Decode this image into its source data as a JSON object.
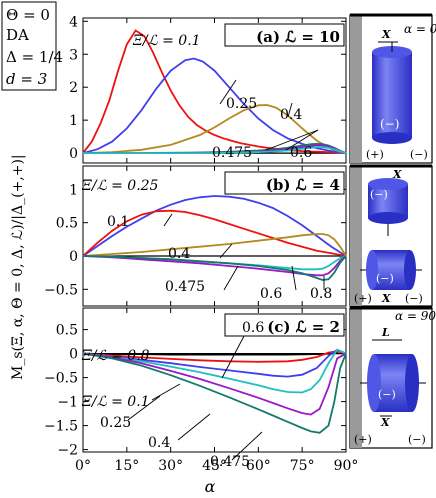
{
  "legend_box": {
    "lines": [
      "Θ = 0",
      "DA",
      "Δ = 1/4",
      "d = 3"
    ]
  },
  "y_axis_label": "M_s(Ξ, α, Θ = 0, Δ, ℒ)/|Δ_(+,+)|",
  "x_axis_label": "α",
  "colors": {
    "red": "#ee1111",
    "blue": "#3f3fee",
    "gold": "#b58a1c",
    "cyan": "#1fbfbf",
    "purple": "#9a18c8",
    "teal": "#137a6a",
    "black": "#000000",
    "gray": "#9a9a9a",
    "cyl_light": "#6f78f0",
    "cyl_dark": "#2a2fc4"
  },
  "chart_data": [
    {
      "type": "line",
      "panel_label": "(a) ℒ = 10",
      "x_ticks": [
        "0°",
        "15°",
        "30°",
        "45°",
        "60°",
        "75°",
        "90°"
      ],
      "xlim": [
        0,
        90
      ],
      "ylim": [
        -0.3,
        4.1
      ],
      "y_ticks": [
        0,
        1,
        2,
        3,
        4
      ],
      "series": [
        {
          "name": "0.1",
          "color": "red",
          "x": [
            0,
            3,
            6,
            9,
            12,
            15,
            18,
            21,
            24,
            27,
            30,
            33,
            36,
            39,
            42,
            45,
            48,
            51,
            54,
            57,
            60,
            63,
            66,
            69,
            72,
            75,
            78,
            81,
            84,
            87,
            90
          ],
          "y": [
            0,
            0.35,
            0.9,
            1.6,
            2.5,
            3.3,
            3.72,
            3.55,
            3.05,
            2.45,
            1.9,
            1.45,
            1.1,
            0.85,
            0.68,
            0.55,
            0.45,
            0.37,
            0.3,
            0.25,
            0.2,
            0.16,
            0.13,
            0.1,
            0.08,
            0.06,
            0.05,
            0.04,
            0.03,
            0.02,
            0
          ]
        },
        {
          "name": "0.25",
          "color": "blue",
          "x": [
            0,
            5,
            10,
            15,
            20,
            25,
            30,
            35,
            38,
            41,
            45,
            50,
            55,
            60,
            65,
            70,
            75,
            80,
            85,
            90
          ],
          "y": [
            0,
            0.12,
            0.35,
            0.75,
            1.3,
            1.95,
            2.5,
            2.82,
            2.87,
            2.78,
            2.5,
            2.0,
            1.5,
            1.05,
            0.7,
            0.45,
            0.28,
            0.15,
            0.06,
            0
          ]
        },
        {
          "name": "0.4",
          "color": "gold",
          "x": [
            0,
            10,
            20,
            30,
            40,
            45,
            50,
            55,
            60,
            63,
            66,
            70,
            75,
            80,
            85,
            90
          ],
          "y": [
            0,
            0.03,
            0.1,
            0.25,
            0.55,
            0.78,
            1.05,
            1.3,
            1.45,
            1.46,
            1.38,
            1.15,
            0.75,
            0.38,
            0.12,
            0
          ]
        },
        {
          "name": "0.475",
          "color": "teal",
          "x": [
            0,
            10,
            20,
            30,
            40,
            50,
            60,
            65,
            70,
            75,
            78,
            80,
            82,
            84,
            86,
            88,
            90
          ],
          "y": [
            0,
            0,
            0,
            0.01,
            0.02,
            0.04,
            0.08,
            0.11,
            0.16,
            0.23,
            0.27,
            0.28,
            0.27,
            0.23,
            0.16,
            0.07,
            0
          ]
        },
        {
          "name": "0.6",
          "color": "purple",
          "x": [
            0,
            10,
            20,
            30,
            40,
            50,
            60,
            65,
            70,
            75,
            78,
            80,
            82,
            84,
            86,
            88,
            90
          ],
          "y": [
            0,
            0,
            0,
            0,
            0.01,
            0.02,
            0.05,
            0.08,
            0.12,
            0.18,
            0.22,
            0.24,
            0.23,
            0.2,
            0.14,
            0.06,
            0
          ]
        },
        {
          "name": "0.8",
          "color": "cyan",
          "x": [
            0,
            10,
            20,
            30,
            40,
            50,
            60,
            65,
            70,
            75,
            78,
            80,
            82,
            84,
            86,
            88,
            90
          ],
          "y": [
            0,
            0,
            0,
            0,
            0,
            0.01,
            0.03,
            0.05,
            0.08,
            0.13,
            0.16,
            0.18,
            0.18,
            0.16,
            0.11,
            0.05,
            0
          ]
        }
      ],
      "labels": [
        {
          "text": "Ξ/ℒ = 0.1",
          "class": "ital"
        },
        {
          "text": "0.25"
        },
        {
          "text": "0.4"
        },
        {
          "text": "0.475"
        },
        {
          "text": "0.6"
        }
      ]
    },
    {
      "type": "line",
      "panel_label": "(b) ℒ = 4",
      "x_ticks": [
        "0°",
        "15°",
        "30°",
        "45°",
        "60°",
        "75°",
        "90°"
      ],
      "xlim": [
        0,
        90
      ],
      "ylim": [
        -0.75,
        1.35
      ],
      "y_ticks": [
        -0.5,
        0,
        0.5,
        1
      ],
      "series": [
        {
          "name": "0.25",
          "color": "blue",
          "x": [
            0,
            5,
            10,
            15,
            20,
            25,
            30,
            35,
            40,
            45,
            50,
            55,
            60,
            65,
            70,
            75,
            80,
            85,
            90
          ],
          "y": [
            0,
            0.15,
            0.3,
            0.44,
            0.56,
            0.68,
            0.77,
            0.84,
            0.88,
            0.9,
            0.89,
            0.86,
            0.8,
            0.72,
            0.6,
            0.46,
            0.3,
            0.14,
            0
          ]
        },
        {
          "name": "0.1",
          "color": "red",
          "x": [
            0,
            5,
            10,
            15,
            20,
            25,
            30,
            35,
            40,
            45,
            50,
            55,
            60,
            65,
            70,
            75,
            80,
            85,
            90
          ],
          "y": [
            0,
            0.2,
            0.38,
            0.52,
            0.62,
            0.67,
            0.68,
            0.66,
            0.61,
            0.55,
            0.48,
            0.41,
            0.34,
            0.27,
            0.2,
            0.14,
            0.08,
            0.04,
            0
          ]
        },
        {
          "name": "0.4",
          "color": "gold",
          "x": [
            0,
            10,
            20,
            30,
            40,
            50,
            60,
            70,
            75,
            80,
            82,
            84,
            86,
            88,
            90
          ],
          "y": [
            0,
            0.03,
            0.06,
            0.1,
            0.14,
            0.18,
            0.23,
            0.28,
            0.31,
            0.33,
            0.33,
            0.31,
            0.25,
            0.14,
            0
          ]
        },
        {
          "name": "0.6",
          "color": "cyan",
          "x": [
            0,
            10,
            20,
            30,
            40,
            50,
            60,
            70,
            75,
            80,
            82,
            84,
            86,
            88,
            90
          ],
          "y": [
            0,
            -0.01,
            -0.03,
            -0.05,
            -0.08,
            -0.11,
            -0.14,
            -0.18,
            -0.2,
            -0.2,
            -0.19,
            -0.15,
            -0.09,
            -0.03,
            0
          ]
        },
        {
          "name": "0.475",
          "color": "purple",
          "x": [
            0,
            10,
            20,
            30,
            40,
            50,
            60,
            70,
            75,
            80,
            82,
            84,
            86,
            88,
            90
          ],
          "y": [
            0,
            -0.02,
            -0.05,
            -0.08,
            -0.11,
            -0.15,
            -0.19,
            -0.24,
            -0.27,
            -0.29,
            -0.29,
            -0.26,
            -0.18,
            -0.07,
            0
          ]
        },
        {
          "name": "0.8",
          "color": "teal",
          "x": [
            0,
            10,
            20,
            30,
            40,
            50,
            60,
            70,
            75,
            78,
            80,
            82,
            84,
            86,
            88,
            90
          ],
          "y": [
            0,
            -0.01,
            -0.03,
            -0.05,
            -0.08,
            -0.11,
            -0.15,
            -0.21,
            -0.26,
            -0.3,
            -0.33,
            -0.36,
            -0.35,
            -0.25,
            -0.1,
            0
          ]
        }
      ],
      "labels": [
        {
          "text": "Ξ/ℒ = 0.25",
          "class": "ital"
        },
        {
          "text": "0.1"
        },
        {
          "text": "0.4"
        },
        {
          "text": "0.475"
        },
        {
          "text": "0.6"
        },
        {
          "text": "0.8"
        }
      ]
    },
    {
      "type": "line",
      "panel_label": "(c) ℒ = 2",
      "x_ticks": [
        "0°",
        "15°",
        "30°",
        "45°",
        "60°",
        "75°",
        "90°"
      ],
      "xlim": [
        0,
        90
      ],
      "ylim": [
        -2.05,
        0.95
      ],
      "y_ticks": [
        -2,
        -1.5,
        -1,
        -0.5,
        0,
        0.5
      ],
      "series": [
        {
          "name": "0.8",
          "color": "black",
          "x": [
            0,
            10,
            20,
            30,
            40,
            50,
            60,
            70,
            80,
            85,
            88,
            90
          ],
          "y": [
            0,
            -0.01,
            -0.01,
            -0.02,
            -0.02,
            -0.02,
            -0.02,
            -0.02,
            -0.01,
            0,
            0.05,
            0
          ]
        },
        {
          "name": "0.1",
          "color": "red",
          "x": [
            0,
            10,
            20,
            30,
            40,
            50,
            60,
            70,
            75,
            80,
            84,
            87,
            90
          ],
          "y": [
            0,
            -0.04,
            -0.08,
            -0.11,
            -0.14,
            -0.16,
            -0.17,
            -0.16,
            -0.13,
            -0.07,
            0.02,
            0.05,
            0
          ]
        },
        {
          "name": "0.25",
          "color": "blue",
          "x": [
            0,
            10,
            20,
            30,
            40,
            50,
            60,
            65,
            70,
            75,
            80,
            84,
            87,
            90
          ],
          "y": [
            0,
            -0.06,
            -0.13,
            -0.2,
            -0.28,
            -0.35,
            -0.42,
            -0.46,
            -0.48,
            -0.44,
            -0.3,
            -0.05,
            0.08,
            0
          ]
        },
        {
          "name": "0.6",
          "color": "cyan",
          "x": [
            0,
            10,
            20,
            30,
            40,
            50,
            60,
            65,
            70,
            75,
            78,
            81,
            84,
            87,
            90
          ],
          "y": [
            0,
            -0.07,
            -0.16,
            -0.27,
            -0.39,
            -0.52,
            -0.66,
            -0.74,
            -0.8,
            -0.81,
            -0.74,
            -0.55,
            -0.2,
            0.08,
            0
          ]
        },
        {
          "name": "0.4",
          "color": "purple",
          "x": [
            0,
            10,
            20,
            30,
            40,
            50,
            60,
            65,
            70,
            75,
            78,
            81,
            84,
            87,
            90
          ],
          "y": [
            0,
            -0.08,
            -0.2,
            -0.36,
            -0.53,
            -0.72,
            -0.92,
            -1.03,
            -1.14,
            -1.24,
            -1.27,
            -1.15,
            -0.7,
            -0.1,
            0
          ]
        },
        {
          "name": "0.475",
          "color": "teal",
          "x": [
            0,
            10,
            20,
            30,
            40,
            50,
            60,
            65,
            70,
            75,
            78,
            81,
            84,
            86,
            88,
            90
          ],
          "y": [
            0,
            -0.1,
            -0.25,
            -0.45,
            -0.67,
            -0.91,
            -1.16,
            -1.29,
            -1.42,
            -1.55,
            -1.62,
            -1.65,
            -1.5,
            -1.0,
            -0.3,
            0
          ]
        }
      ],
      "labels": [
        {
          "text": "Ξ/ℒ = 0.8",
          "class": "ital"
        },
        {
          "text": "0.6"
        },
        {
          "text": "Ξ/ℒ = 0.1",
          "class": "ital"
        },
        {
          "text": "0.25"
        },
        {
          "text": "0.4"
        },
        {
          "text": "0.475"
        }
      ]
    }
  ],
  "insets": [
    {
      "angle_label": "α = 0°",
      "x_label": "X",
      "sign_inner": "(−)",
      "sign_left": "(+)",
      "sign_right": "(−)"
    },
    {
      "x_label": "X",
      "sign_inner_top": "(−)",
      "sign_inner_bottom": "(−)",
      "sign_left": "(+)",
      "x_label_bottom": "X",
      "sign_right": "(−)"
    },
    {
      "angle_label": "α = 90°",
      "l_label": "L",
      "x_label": "X",
      "sign_inner": "(−)",
      "sign_left": "(+)",
      "sign_right": "(−)"
    }
  ]
}
